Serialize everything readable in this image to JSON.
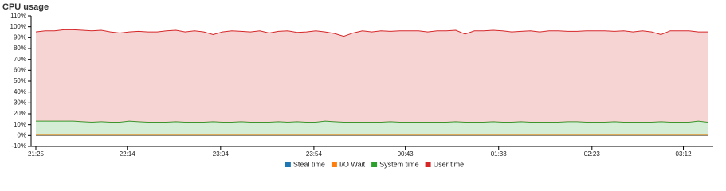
{
  "chart_data": {
    "type": "stacked-area",
    "title": "CPU usage",
    "x": [
      "21:25",
      "21:30",
      "21:35",
      "21:40",
      "21:45",
      "21:50",
      "21:55",
      "22:00",
      "22:05",
      "22:10",
      "22:15",
      "22:20",
      "22:25",
      "22:30",
      "22:35",
      "22:40",
      "22:45",
      "22:50",
      "22:55",
      "23:00",
      "23:05",
      "23:10",
      "23:15",
      "23:20",
      "23:25",
      "23:30",
      "23:35",
      "23:40",
      "23:45",
      "23:50",
      "23:55",
      "00:00",
      "00:05",
      "00:10",
      "00:15",
      "00:20",
      "00:25",
      "00:30",
      "00:35",
      "00:40",
      "00:45",
      "00:50",
      "00:55",
      "01:00",
      "01:05",
      "01:10",
      "01:15",
      "01:20",
      "01:25",
      "01:30",
      "01:35",
      "01:40",
      "01:45",
      "01:50",
      "01:55",
      "02:00",
      "02:05",
      "02:10",
      "02:15",
      "02:20",
      "02:25",
      "02:30",
      "02:35",
      "02:40",
      "02:45",
      "02:50",
      "02:55",
      "03:00",
      "03:05",
      "03:10",
      "03:15",
      "03:20",
      "03:25"
    ],
    "xlim": [
      "21:25",
      "03:28"
    ],
    "xticks": [
      "21:25",
      "22:14",
      "23:04",
      "23:54",
      "00:43",
      "01:33",
      "02:23",
      "03:12"
    ],
    "ylim": [
      -10,
      110
    ],
    "yticks": [
      {
        "value": -10,
        "label": "-10%"
      },
      {
        "value": 0,
        "label": "0%"
      },
      {
        "value": 10,
        "label": "10%"
      },
      {
        "value": 20,
        "label": "20%"
      },
      {
        "value": 30,
        "label": "30%"
      },
      {
        "value": 40,
        "label": "40%"
      },
      {
        "value": 50,
        "label": "50%"
      },
      {
        "value": 60,
        "label": "60%"
      },
      {
        "value": 70,
        "label": "70%"
      },
      {
        "value": 80,
        "label": "80%"
      },
      {
        "value": 90,
        "label": "90%"
      },
      {
        "value": 100,
        "label": "100%"
      },
      {
        "value": 110,
        "label": "110%"
      }
    ],
    "series": [
      {
        "name": "Steal time",
        "color": "#1f77b4",
        "values": [
          0,
          0,
          0,
          0,
          0,
          0,
          0,
          0,
          0,
          0,
          0,
          0,
          0,
          0,
          0,
          0,
          0,
          0,
          0,
          0,
          0,
          0,
          0,
          0,
          0,
          0,
          0,
          0,
          0,
          0,
          0,
          0,
          0,
          0,
          0,
          0,
          0,
          0,
          0,
          0,
          0,
          0,
          0,
          0,
          0,
          0,
          0,
          0,
          0,
          0,
          0,
          0,
          0,
          0,
          0,
          0,
          0,
          0,
          0,
          0,
          0,
          0,
          0,
          0,
          0,
          0,
          0,
          0,
          0,
          0,
          0,
          0,
          0
        ]
      },
      {
        "name": "I/O Wait",
        "color": "#ff7f0e",
        "values": [
          0.3,
          0.3,
          0.3,
          0.3,
          0.3,
          0.3,
          0.3,
          0.3,
          0.3,
          0.3,
          0.3,
          0.3,
          0.3,
          0.3,
          0.3,
          0.3,
          0.3,
          0.3,
          0.3,
          0.3,
          0.3,
          0.3,
          0.3,
          0.3,
          0.3,
          0.3,
          0.3,
          0.3,
          0.3,
          0.3,
          0.3,
          0.3,
          0.3,
          0.3,
          0.3,
          0.3,
          0.3,
          0.3,
          0.3,
          0.3,
          0.3,
          0.3,
          0.3,
          0.3,
          0.3,
          0.3,
          0.3,
          0.3,
          0.3,
          0.3,
          0.3,
          0.3,
          0.3,
          0.3,
          0.3,
          0.3,
          0.3,
          0.3,
          0.3,
          0.3,
          0.3,
          0.3,
          0.3,
          0.3,
          0.3,
          0.3,
          0.3,
          0.3,
          0.3,
          0.3,
          0.3,
          0.3,
          0.3
        ]
      },
      {
        "name": "System time",
        "color": "#2ca02c",
        "values": [
          13,
          13,
          13,
          13,
          13,
          12.5,
          12,
          12.5,
          12,
          12,
          13,
          12.5,
          12,
          12,
          12,
          12.5,
          12,
          12,
          12,
          12.5,
          12,
          12,
          12.5,
          12,
          12,
          12,
          12.5,
          12,
          12.5,
          12,
          12,
          13,
          12.5,
          12,
          12,
          12,
          12,
          12,
          12.5,
          12,
          12,
          12,
          12,
          12,
          12,
          12.5,
          12,
          12,
          12,
          12.5,
          12,
          12,
          12.5,
          12,
          12,
          12,
          12,
          12.5,
          12.5,
          12,
          12,
          12,
          12.5,
          12,
          12,
          12,
          12,
          12.5,
          12,
          12,
          12,
          13,
          12
        ]
      },
      {
        "name": "User time",
        "color": "#d62728",
        "values": [
          82,
          83,
          83,
          84,
          84,
          84,
          84,
          84,
          83,
          82,
          82,
          83,
          83,
          83,
          84,
          84,
          83,
          84,
          83,
          80,
          83,
          84,
          83,
          83,
          84,
          82,
          83,
          84,
          82,
          83,
          84,
          82,
          81,
          79,
          82,
          84,
          83,
          84,
          83,
          84,
          84,
          84,
          83,
          84,
          84,
          84,
          81,
          84,
          84,
          84,
          84,
          83,
          83,
          84,
          83,
          84,
          84,
          83,
          83,
          84,
          84,
          84,
          83,
          84,
          83,
          84,
          83,
          80,
          84,
          84,
          84,
          82,
          83
        ]
      }
    ]
  }
}
